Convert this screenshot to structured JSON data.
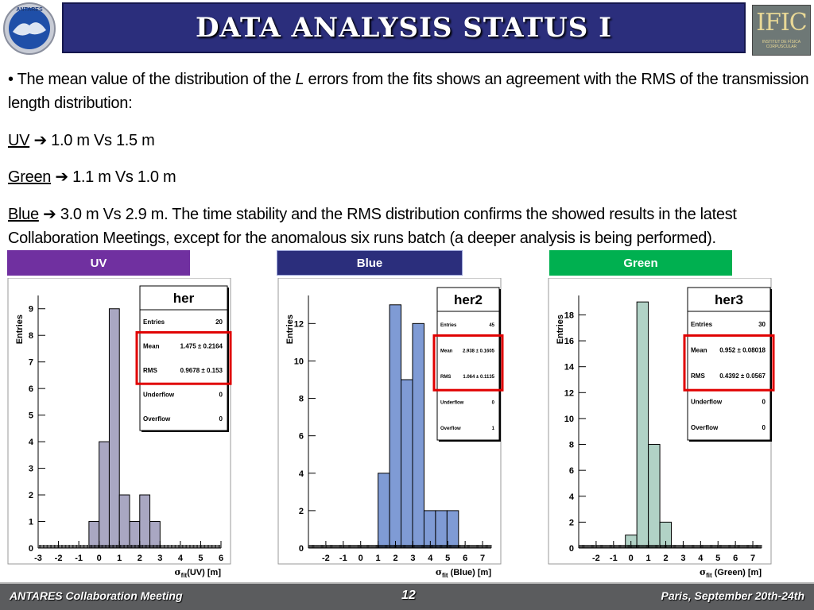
{
  "slide": {
    "title": "DATA ANALYSIS STATUS I",
    "logo_left": "ANTARES",
    "logo_right": "IFIC",
    "logo_right_sub": "INSTITUT DE FÍSICA CORPUSCULAR",
    "bullet_pre": "• The mean value of the distribution of the ",
    "bullet_italic": "L",
    "bullet_post": " errors from the fits shows an agreement with the RMS of the transmission length distribution:",
    "lines": [
      {
        "label": "UV",
        "text": " 1.0 m Vs 1.5 m"
      },
      {
        "label": "Green",
        "text": " 1.1 m Vs 1.0 m"
      },
      {
        "label": "Blue",
        "text": " 3.0 m Vs 2.9 m. The time stability and the RMS distribution confirms the showed results in the latest Collaboration Meetings, except for the anomalous six runs batch (a deeper analysis is being performed)."
      }
    ],
    "arrow": "➔",
    "tags": {
      "uv": "UV",
      "blue": "Blue",
      "green": "Green"
    },
    "footer": {
      "left": "ANTARES Collaboration Meeting",
      "page": "12",
      "right": "Paris, September 20th-24th"
    }
  },
  "colors": {
    "title_bg": "#2b2e7c",
    "uv": "#7030a0",
    "blue": "#2b2e7c",
    "green": "#00b050",
    "highlight": "#e00000",
    "footer_bg": "#5b5c5e"
  },
  "chart_data": [
    {
      "type": "bar",
      "name": "her",
      "ylabel": "Entries",
      "xlabel_sigma": "σ",
      "xlabel_sub": "fit",
      "xlabel_rest": "(UV)  [m]",
      "xlim": [
        -3,
        6
      ],
      "ylim": [
        0,
        9.5
      ],
      "xticks": [
        -3,
        -2,
        -1,
        0,
        1,
        2,
        3,
        4,
        5,
        6
      ],
      "yticks": [
        0,
        1,
        2,
        3,
        4,
        5,
        6,
        7,
        8,
        9
      ],
      "bin_width": 0.5,
      "bin_start": -0.5,
      "values": [
        1,
        4,
        9,
        2,
        1,
        2,
        1
      ],
      "fill": "#a9a7c2",
      "stats": [
        {
          "label": "Entries",
          "value": "20"
        },
        {
          "label": "Mean",
          "value": "1.475 ± 0.2164"
        },
        {
          "label": "RMS",
          "value": "0.9678 ±  0.153"
        },
        {
          "label": "Underflow",
          "value": "0"
        },
        {
          "label": "Overflow",
          "value": "0"
        }
      ]
    },
    {
      "type": "bar",
      "name": "her2",
      "ylabel": "Entries",
      "xlabel_sigma": "σ",
      "xlabel_sub": "fit",
      "xlabel_rest": " (Blue) [m]",
      "xlim": [
        -3,
        7.5
      ],
      "ylim": [
        0,
        13.5
      ],
      "xticks": [
        -2,
        -1,
        0,
        1,
        2,
        3,
        4,
        5,
        6,
        7
      ],
      "yticks": [
        0,
        2,
        4,
        6,
        8,
        10,
        12
      ],
      "bin_width": 0.66,
      "bin_start": 1.0,
      "values": [
        4,
        13,
        9,
        12,
        2,
        2,
        2
      ],
      "fill": "#7f9bd5",
      "stats": [
        {
          "label": "Entries",
          "value": "45"
        },
        {
          "label": "Mean",
          "value": "2.938 ± 0.1605"
        },
        {
          "label": "RMS",
          "value": "1.064 ± 0.1135"
        },
        {
          "label": "Underflow",
          "value": "0"
        },
        {
          "label": "Overflow",
          "value": "1"
        }
      ]
    },
    {
      "type": "bar",
      "name": "her3",
      "ylabel": "Entries",
      "xlabel_sigma": "σ",
      "xlabel_sub": "fit",
      "xlabel_rest": " (Green) [m]",
      "xlim": [
        -3,
        7.5
      ],
      "ylim": [
        0,
        19.5
      ],
      "xticks": [
        -2,
        -1,
        0,
        1,
        2,
        3,
        4,
        5,
        6,
        7
      ],
      "yticks": [
        0,
        2,
        4,
        6,
        8,
        10,
        12,
        14,
        16,
        18
      ],
      "bin_width": 0.66,
      "bin_start": -0.32,
      "values": [
        1,
        19,
        8,
        2
      ],
      "fill": "#b1d2c6",
      "stats": [
        {
          "label": "Entries",
          "value": "30"
        },
        {
          "label": "Mean",
          "value": "0.952 ± 0.08018"
        },
        {
          "label": "RMS",
          "value": "0.4392 ± 0.0567"
        },
        {
          "label": "Underflow",
          "value": "0"
        },
        {
          "label": "Overflow",
          "value": "0"
        }
      ]
    }
  ]
}
